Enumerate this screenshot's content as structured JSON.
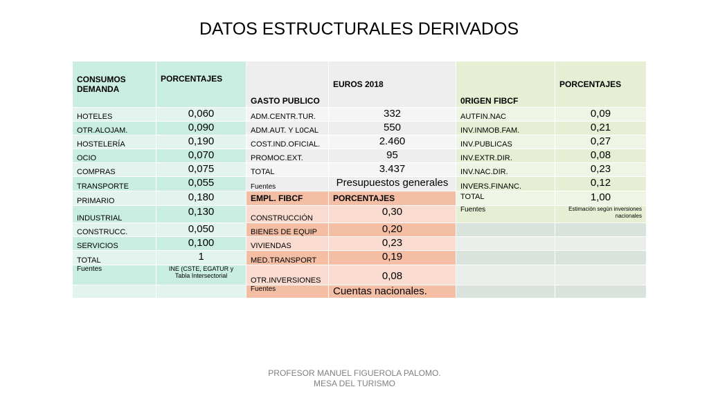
{
  "title": "DATOS ESTRUCTURALES DERIVADOS",
  "footer": {
    "line1": "PROFESOR MANUEL FIGUEROLA PALOMO.",
    "line2": "MESA DEL TURISMO"
  },
  "colors": {
    "consumo_green": "#c9ede0",
    "gasto_gray": "#eeeeee",
    "empleo_salmon": "#f4bea5",
    "origen_light_green": "#e6efd4"
  },
  "consumos": {
    "header_label": "CONSUMOS DEMANDA",
    "header_pct": "PORCENTAJES",
    "rows": [
      {
        "label": "HOTELES",
        "value": "0,060"
      },
      {
        "label": "OTR.ALOJAM.",
        "value": "0,090"
      },
      {
        "label": "HOSTELERÍA",
        "value": "0,190"
      },
      {
        "label": "OCIO",
        "value": "0,070"
      },
      {
        "label": "COMPRAS",
        "value": "0,075"
      },
      {
        "label": "TRANSPORTE",
        "value": "0,055"
      },
      {
        "label": "PRIMARIO",
        "value": "0,180"
      },
      {
        "label": "INDUSTRIAL",
        "value": "0,130"
      },
      {
        "label": "CONSTRUCC.",
        "value": "0,050"
      },
      {
        "label": "SERVICIOS",
        "value": "0,100"
      },
      {
        "label": "TOTAL",
        "value": "1"
      }
    ],
    "fuentes_label": "Fuentes",
    "fuentes_value": "INE (CSTE, EGATUR y Tabla Intersectorial"
  },
  "gasto": {
    "header_label": "GASTO PUBLICO",
    "header_value": "EUROS 2018",
    "rows": [
      {
        "label": "ADM.CENTR.TUR.",
        "value": "332"
      },
      {
        "label": "ADM.AUT. Y L0CAL",
        "value": "550"
      },
      {
        "label": "COST.IND.OFICIAL.",
        "value": "2.460"
      },
      {
        "label": "PROMOC.EXT.",
        "value": "95"
      },
      {
        "label": "TOTAL",
        "value": "3.437"
      }
    ],
    "fuentes_label": "Fuentes",
    "fuentes_value": "Presupuestos  generales"
  },
  "empleo": {
    "header_label": "EMPL. FIBCF",
    "header_pct": "PORCENTAJES",
    "rows": [
      {
        "label": "CONSTRUCCIÓN",
        "value": "0,30"
      },
      {
        "label": "BIENES DE EQUIP",
        "value": "0,20"
      },
      {
        "label": "VIVIENDAS",
        "value": "0,23"
      },
      {
        "label": "MED.TRANSPORT",
        "value": "0,19"
      },
      {
        "label": "OTR.INVERSIONES",
        "value": "0,08"
      }
    ],
    "fuentes_label": "Fuentes",
    "fuentes_value": "Cuentas nacionales."
  },
  "origen": {
    "header_label": "0RIGEN FIBCF",
    "header_pct": "PORCENTAJES",
    "rows": [
      {
        "label": "AUTFIN.NAC",
        "value": "0,09"
      },
      {
        "label": "INV.INMOB.FAM.",
        "value": "0,21"
      },
      {
        "label": "INV.PUBLICAS",
        "value": "0,27"
      },
      {
        "label": "INV.EXTR.DIR.",
        "value": "0,08"
      },
      {
        "label": "INV.NAC.DIR.",
        "value": "0,23"
      },
      {
        "label": "INVERS.FINANC.",
        "value": "0,12"
      },
      {
        "label": "TOTAL",
        "value": "1,00"
      }
    ],
    "fuentes_label": "Fuentes",
    "fuentes_value": "Estimación según inversiones nacionales"
  }
}
